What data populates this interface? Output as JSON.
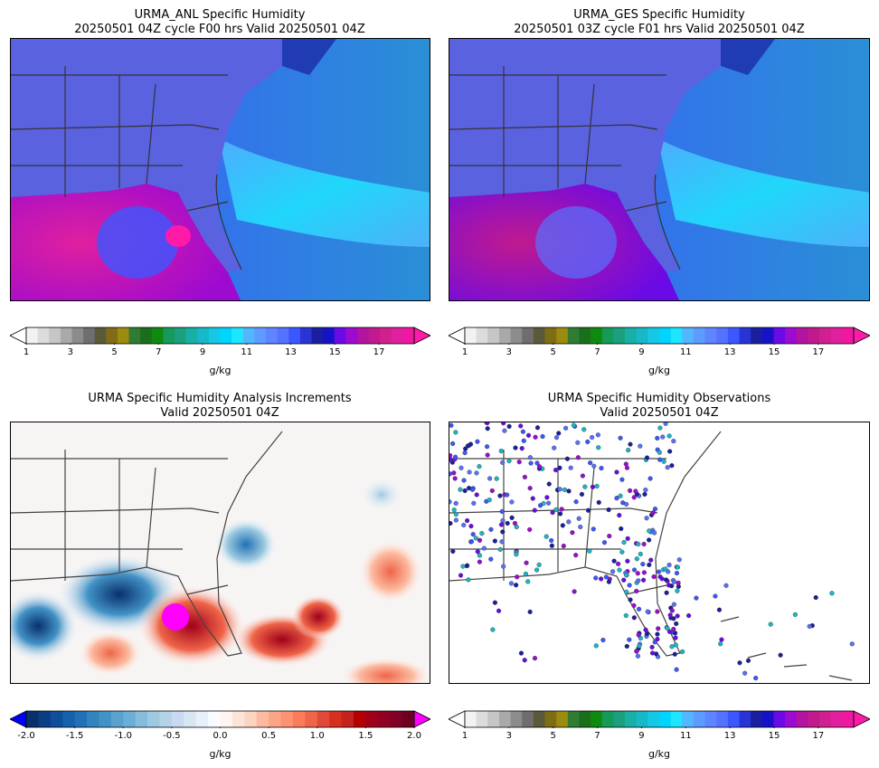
{
  "panels": [
    {
      "title_line1": "URMA_ANL Specific Humidity",
      "title_line2": "20250501 04Z cycle F00 hrs Valid 20250501 04Z"
    },
    {
      "title_line1": "URMA_GES Specific Humidity",
      "title_line2": "20250501 03Z cycle F01 hrs Valid 20250501 04Z"
    },
    {
      "title_line1": "URMA Specific Humidity Analysis Increments",
      "title_line2": "Valid 20250501 04Z"
    },
    {
      "title_line1": "URMA Specific Humidity Observations",
      "title_line2": "Valid 20250501 04Z"
    }
  ],
  "colorbars": {
    "humidity": {
      "unit": "g/kg",
      "ticks": [
        "1",
        "3",
        "5",
        "7",
        "9",
        "11",
        "13",
        "15",
        "17"
      ],
      "colors": [
        "#f2f2f2",
        "#dcdcdc",
        "#c6c6c6",
        "#a9a9a9",
        "#8c8c8c",
        "#6e6e6e",
        "#5a5a3a",
        "#806c14",
        "#9b8b0f",
        "#2e7d32",
        "#1b6e1b",
        "#0f8a0f",
        "#159a5a",
        "#1aa07f",
        "#18b0a6",
        "#17b8c8",
        "#14c8e6",
        "#00d5ff",
        "#1ee6ff",
        "#54b6ff",
        "#5e9bff",
        "#5f84ff",
        "#5572ff",
        "#3b58ff",
        "#2a33d6",
        "#1a1f9f",
        "#1712c8",
        "#6a0ae6",
        "#9d0ad0",
        "#b3139f",
        "#c01a8e",
        "#d0208f",
        "#e0209f",
        "#f018a0"
      ],
      "under_color": "#ffffff",
      "over_color": "#ff1aa8"
    },
    "increment": {
      "unit": "g/kg",
      "ticks": [
        "-2.0",
        "-1.5",
        "-1.0",
        "-0.5",
        "0.0",
        "0.5",
        "1.0",
        "1.5",
        "2.0"
      ],
      "colors": [
        "#08306b",
        "#0b3d84",
        "#104d9a",
        "#1660ad",
        "#2171b5",
        "#3383be",
        "#4292c6",
        "#5aa1cf",
        "#6baed6",
        "#85bcdc",
        "#9ecae1",
        "#b2d3e8",
        "#c6dbef",
        "#d6e6f3",
        "#e7eff8",
        "#f7fbff",
        "#fff5f0",
        "#fee4d8",
        "#fdd4c2",
        "#fcbba1",
        "#fca486",
        "#fc9272",
        "#fb7b5b",
        "#ef6548",
        "#e04a3a",
        "#d7301f",
        "#c4221c",
        "#b30000",
        "#a0001a",
        "#900023",
        "#800026",
        "#6b001f"
      ],
      "under_color": "#0000ff",
      "over_color": "#ff00ff"
    }
  },
  "map_styles": {
    "anl": {
      "land": "#5a62e0",
      "ocean_east": "#3a5cf0",
      "gulf": "#c01a8e",
      "moist_band": "#00d5ff"
    },
    "ges": {
      "land": "#5a62e0",
      "ocean_east": "#3a5cf0",
      "gulf": "#b3139f",
      "moist_band": "#1ee6ff"
    },
    "increment": {
      "background": "#f7f4f4",
      "positive_max": "#ff00ff",
      "negative_max": "#08306b"
    },
    "observations": {
      "background": "#ffffff",
      "station_colors": [
        "#1a1f9f",
        "#3b58ff",
        "#5572ff",
        "#9d0ad0",
        "#17b8c8",
        "#6a0ae6"
      ]
    }
  }
}
